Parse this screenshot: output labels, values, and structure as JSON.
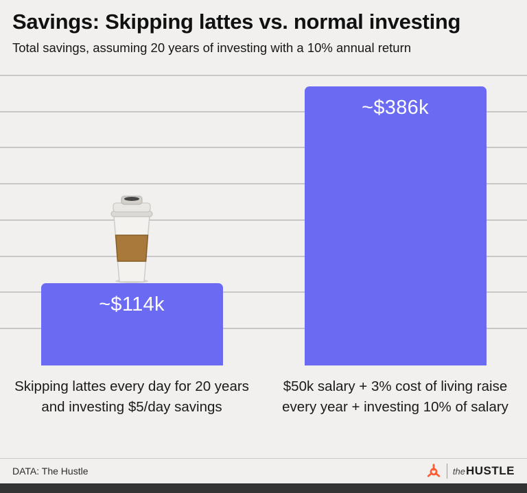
{
  "header": {
    "title": "Savings: Skipping lattes vs. normal investing",
    "subtitle": "Total savings, assuming 20 years of investing with a 10% annual return"
  },
  "chart_data": {
    "type": "bar",
    "title": "Savings: Skipping lattes vs. normal investing",
    "subtitle": "Total savings, assuming 20 years of investing with a 10% annual return",
    "categories": [
      "Skipping lattes every day for 20 years and investing $5/day savings",
      "$50k salary + 3% cost of living raise every year + investing 10% of salary"
    ],
    "values": [
      114,
      386
    ],
    "value_labels": [
      "~$114k",
      "~$386k"
    ],
    "unit": "thousand USD",
    "ylabel": "",
    "xlabel": "",
    "ylim": [
      0,
      400
    ],
    "gridline_count": 8,
    "grid": true,
    "legend": "none",
    "bar_color": "#6b6af2",
    "annotations": [
      "coffee cup illustration on top of first bar"
    ]
  },
  "footer": {
    "source": "DATA: The Hustle",
    "brand_the": "the",
    "brand_hustle": "HUSTLE"
  },
  "colors": {
    "background": "#f1f0ee",
    "bar": "#6b6af2",
    "brand_orange": "#ff5c35",
    "gridline": "#c7c7c7"
  }
}
